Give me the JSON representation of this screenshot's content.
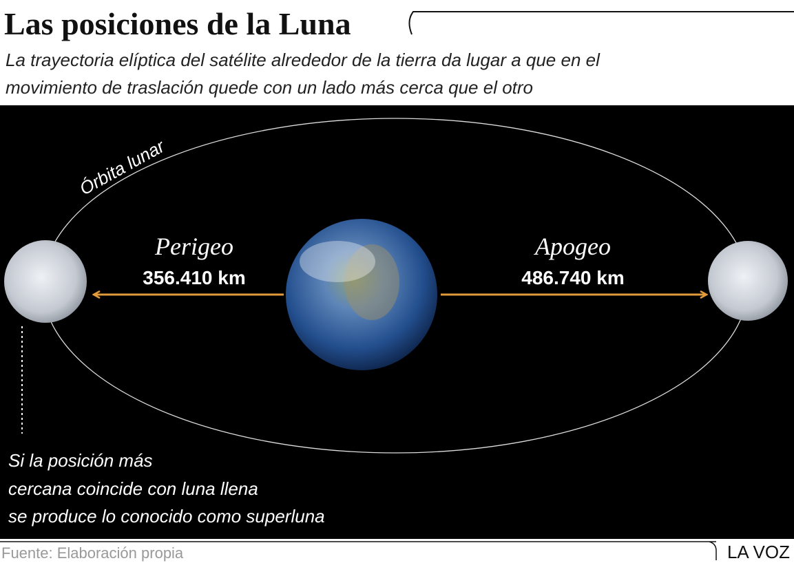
{
  "header": {
    "title": "Las posiciones de la Luna",
    "subtitle": [
      "La trayectoria elíptica del satélite alrededor de la tierra da lugar a que en el",
      "movimiento de traslación quede con un lado más cerca que el otro"
    ]
  },
  "diagram": {
    "orbit_label": "Órbita lunar",
    "perigee": {
      "label": "Perigeo",
      "distance": "356.410 km"
    },
    "apogee": {
      "label": "Apogeo",
      "distance": "486.740 km"
    },
    "note": [
      "Si la posición más",
      "cercana coincide con luna llena",
      "se produce lo conocido como superluna"
    ]
  },
  "footer": {
    "source": "Fuente: Elaboración propia",
    "brand": "LA VOZ"
  }
}
